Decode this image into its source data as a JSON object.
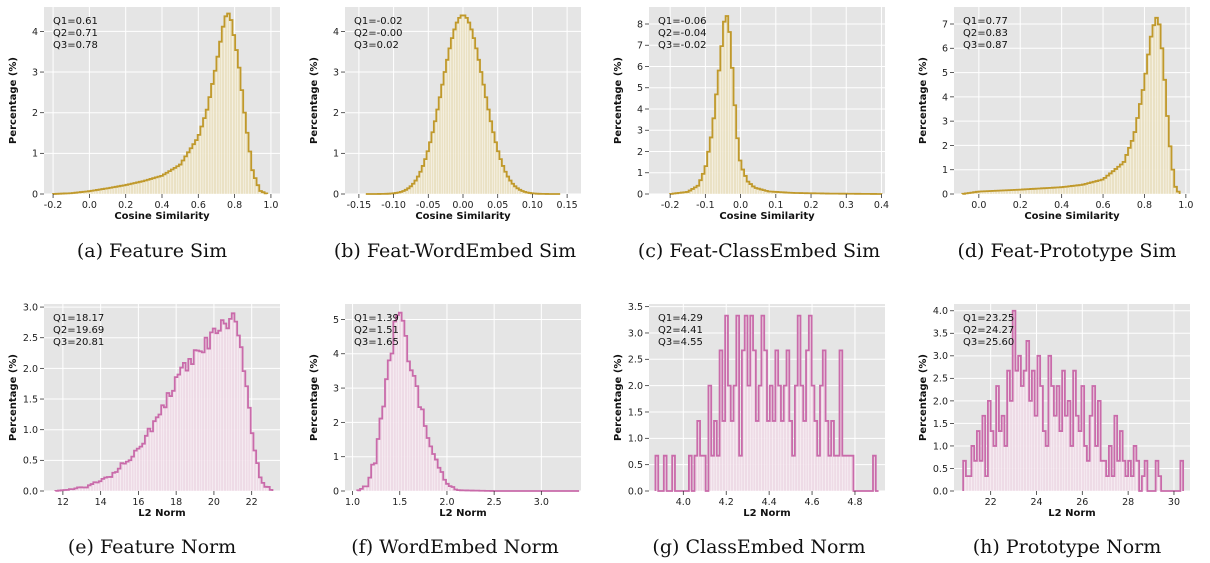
{
  "chart_data": [
    {
      "type": "histogram",
      "caption": "(a) Feature Sim",
      "xlabel": "Cosine Similarity",
      "ylabel": "Percentage (%)",
      "xlim": [
        -0.25,
        1.05
      ],
      "ylim": [
        0,
        4.6
      ],
      "xticks": [
        "-0.2",
        "0.0",
        "0.2",
        "0.4",
        "0.6",
        "0.8",
        "1.0"
      ],
      "yticks": [
        "0",
        "1",
        "2",
        "3",
        "4"
      ],
      "stats": [
        "Q1=0.61",
        "Q2=0.71",
        "Q3=0.78"
      ],
      "color": "#C0992B",
      "fill": "#EAE0C0",
      "range": [
        -0.2,
        0.98
      ],
      "bins": 80,
      "curve": {
        "kind": "knots",
        "points": [
          [
            -0.2,
            0
          ],
          [
            -0.1,
            0.02
          ],
          [
            0.0,
            0.07
          ],
          [
            0.1,
            0.14
          ],
          [
            0.2,
            0.22
          ],
          [
            0.3,
            0.32
          ],
          [
            0.4,
            0.45
          ],
          [
            0.5,
            0.72
          ],
          [
            0.6,
            1.4
          ],
          [
            0.65,
            2.1
          ],
          [
            0.7,
            3.2
          ],
          [
            0.74,
            4.2
          ],
          [
            0.76,
            4.5
          ],
          [
            0.78,
            4.3
          ],
          [
            0.82,
            3.3
          ],
          [
            0.86,
            1.8
          ],
          [
            0.9,
            0.55
          ],
          [
            0.94,
            0.08
          ],
          [
            0.98,
            0
          ]
        ]
      }
    },
    {
      "type": "histogram",
      "caption": "(b) Feat-WordEmbed Sim",
      "xlabel": "Cosine Similarity",
      "ylabel": "Percentage (%)",
      "xlim": [
        -0.17,
        0.17
      ],
      "ylim": [
        0,
        4.6
      ],
      "xticks": [
        "-0.15",
        "-0.10",
        "-0.05",
        "0.00",
        "0.05",
        "0.10",
        "0.15"
      ],
      "yticks": [
        "0",
        "1",
        "2",
        "3",
        "4"
      ],
      "stats": [
        "Q1=-0.02",
        "Q2=-0.00",
        "Q3=0.02"
      ],
      "color": "#C0992B",
      "fill": "#EAE0C0",
      "range": [
        -0.14,
        0.14
      ],
      "bins": 80,
      "curve": {
        "kind": "gauss",
        "mu": 0.0,
        "sigma": 0.03,
        "peak": 4.4
      }
    },
    {
      "type": "histogram",
      "caption": "(c) Feat-ClassEmbed Sim",
      "xlabel": "Cosine Similarity",
      "ylabel": "Percentage (%)",
      "xlim": [
        -0.26,
        0.41
      ],
      "ylim": [
        0,
        8.8
      ],
      "xticks": [
        "-0.2",
        "-0.1",
        "0.0",
        "0.1",
        "0.2",
        "0.3",
        "0.4"
      ],
      "yticks": [
        "0",
        "1",
        "2",
        "3",
        "4",
        "5",
        "6",
        "7",
        "8"
      ],
      "stats": [
        "Q1=-0.06",
        "Q2=-0.04",
        "Q3=-0.02"
      ],
      "color": "#C0992B",
      "fill": "#EAE0C0",
      "range": [
        -0.2,
        0.4
      ],
      "bins": 80,
      "curve": {
        "kind": "knots",
        "points": [
          [
            -0.2,
            0
          ],
          [
            -0.15,
            0.1
          ],
          [
            -0.12,
            0.4
          ],
          [
            -0.1,
            1.2
          ],
          [
            -0.08,
            3.0
          ],
          [
            -0.06,
            6.0
          ],
          [
            -0.045,
            8.3
          ],
          [
            -0.04,
            8.5
          ],
          [
            -0.03,
            7.5
          ],
          [
            -0.02,
            5.0
          ],
          [
            -0.01,
            2.8
          ],
          [
            0.0,
            1.4
          ],
          [
            0.02,
            0.6
          ],
          [
            0.04,
            0.3
          ],
          [
            0.08,
            0.12
          ],
          [
            0.15,
            0.05
          ],
          [
            0.25,
            0.02
          ],
          [
            0.4,
            0.0
          ]
        ]
      }
    },
    {
      "type": "histogram",
      "caption": "(d) Feat-Prototype Sim",
      "xlabel": "Cosine Similarity",
      "ylabel": "Percentage (%)",
      "xlim": [
        -0.12,
        1.02
      ],
      "ylim": [
        0,
        7.7
      ],
      "xticks": [
        "0.0",
        "0.2",
        "0.4",
        "0.6",
        "0.8",
        "1.0"
      ],
      "yticks": [
        "0",
        "1",
        "2",
        "3",
        "4",
        "5",
        "6",
        "7"
      ],
      "stats": [
        "Q1=0.77",
        "Q2=0.83",
        "Q3=0.87"
      ],
      "color": "#C0992B",
      "fill": "#EAE0C0",
      "range": [
        -0.08,
        0.97
      ],
      "bins": 80,
      "curve": {
        "kind": "knots",
        "points": [
          [
            -0.08,
            0
          ],
          [
            0.0,
            0.1
          ],
          [
            0.2,
            0.18
          ],
          [
            0.4,
            0.28
          ],
          [
            0.5,
            0.38
          ],
          [
            0.6,
            0.6
          ],
          [
            0.7,
            1.3
          ],
          [
            0.75,
            2.4
          ],
          [
            0.8,
            4.6
          ],
          [
            0.83,
            6.4
          ],
          [
            0.855,
            7.3
          ],
          [
            0.87,
            7.1
          ],
          [
            0.89,
            5.6
          ],
          [
            0.91,
            3.3
          ],
          [
            0.93,
            1.4
          ],
          [
            0.95,
            0.3
          ],
          [
            0.97,
            0
          ]
        ]
      }
    },
    {
      "type": "histogram",
      "caption": "(e) Feature Norm",
      "xlabel": "L2 Norm",
      "ylabel": "Percentage (%)",
      "xlim": [
        11.0,
        23.5
      ],
      "ylim": [
        0,
        3.05
      ],
      "xticks": [
        "12",
        "14",
        "16",
        "18",
        "20",
        "22"
      ],
      "yticks": [
        "0.0",
        "0.5",
        "1.0",
        "1.5",
        "2.0",
        "2.5",
        "3.0"
      ],
      "stats": [
        "Q1=18.17",
        "Q2=19.69",
        "Q3=20.81"
      ],
      "color": "#C96BAA",
      "fill": "#EED9E6",
      "range": [
        11.6,
        23.1
      ],
      "bins": 80,
      "curve": {
        "kind": "knots",
        "points": [
          [
            11.6,
            0
          ],
          [
            12.5,
            0.03
          ],
          [
            13.5,
            0.1
          ],
          [
            14.5,
            0.25
          ],
          [
            15.5,
            0.55
          ],
          [
            16.5,
            0.9
          ],
          [
            17.5,
            1.5
          ],
          [
            18.5,
            2.0
          ],
          [
            19.5,
            2.35
          ],
          [
            20.5,
            2.7
          ],
          [
            21.0,
            2.8
          ],
          [
            21.5,
            2.25
          ],
          [
            22.0,
            1.0
          ],
          [
            22.5,
            0.15
          ],
          [
            23.1,
            0
          ]
        ]
      },
      "noise": 0.09
    },
    {
      "type": "histogram",
      "caption": "(f) WordEmbed Norm",
      "xlabel": "L2 Norm",
      "ylabel": "Percentage (%)",
      "xlim": [
        0.92,
        3.42
      ],
      "ylim": [
        0,
        5.45
      ],
      "xticks": [
        "1.0",
        "1.5",
        "2.0",
        "2.5",
        "3.0"
      ],
      "yticks": [
        "0",
        "1",
        "2",
        "3",
        "4",
        "5"
      ],
      "stats": [
        "Q1=1.39",
        "Q2=1.51",
        "Q3=1.65"
      ],
      "color": "#C96BAA",
      "fill": "#EED9E6",
      "range": [
        1.05,
        3.4
      ],
      "bins": 80,
      "curve": {
        "kind": "knots",
        "points": [
          [
            1.05,
            0.0
          ],
          [
            1.15,
            0.15
          ],
          [
            1.25,
            1.0
          ],
          [
            1.35,
            3.0
          ],
          [
            1.45,
            4.8
          ],
          [
            1.5,
            5.2
          ],
          [
            1.55,
            4.5
          ],
          [
            1.65,
            3.3
          ],
          [
            1.75,
            2.1
          ],
          [
            1.85,
            1.1
          ],
          [
            1.95,
            0.45
          ],
          [
            2.05,
            0.1
          ],
          [
            2.15,
            0.02
          ],
          [
            2.5,
            0.0
          ],
          [
            3.4,
            0.0
          ]
        ]
      },
      "noise": 0.12
    },
    {
      "type": "histogram",
      "caption": "(g) ClassEmbed Norm",
      "xlabel": "L2 Norm",
      "ylabel": "Percentage (%)",
      "xlim": [
        3.84,
        4.94
      ],
      "ylim": [
        0,
        3.55
      ],
      "xticks": [
        "4.0",
        "4.2",
        "4.4",
        "4.6",
        "4.8"
      ],
      "yticks": [
        "0.0",
        "0.5",
        "1.0",
        "1.5",
        "2.0",
        "2.5",
        "3.0",
        "3.5"
      ],
      "stats": [
        "Q1=4.29",
        "Q2=4.41",
        "Q3=4.55"
      ],
      "color": "#C96BAA",
      "fill": "#EED9E6",
      "range": [
        3.87,
        4.91
      ],
      "bins": 80,
      "values": [
        0.67,
        0,
        0,
        0.67,
        0,
        0,
        0.67,
        0,
        0,
        0,
        0,
        0,
        0.67,
        0,
        0.67,
        1.33,
        0.67,
        0.67,
        0,
        2.0,
        0.67,
        1.33,
        0.67,
        2.67,
        1.33,
        3.33,
        2.0,
        1.33,
        2.0,
        3.33,
        0.67,
        2.67,
        3.33,
        2.0,
        3.33,
        2.67,
        1.33,
        2.0,
        3.33,
        2.67,
        1.33,
        2.0,
        1.33,
        2.67,
        2.0,
        1.33,
        2.0,
        2.67,
        1.33,
        0.67,
        2.0,
        3.33,
        2.0,
        1.33,
        2.67,
        3.33,
        2.0,
        1.33,
        0.67,
        2.0,
        2.67,
        1.33,
        0.67,
        1.33,
        0.67,
        0.67,
        2.67,
        0.67,
        0.67,
        0.67,
        0.67,
        0,
        0,
        0,
        0,
        0,
        0,
        0,
        0.67,
        0
      ]
    },
    {
      "type": "histogram",
      "caption": "(h) Prototype Norm",
      "xlabel": "L2 Norm",
      "ylabel": "Percentage (%)",
      "xlim": [
        20.4,
        30.7
      ],
      "ylim": [
        0,
        4.15
      ],
      "xticks": [
        "22",
        "24",
        "26",
        "28",
        "30"
      ],
      "yticks": [
        "0.0",
        "0.5",
        "1.0",
        "1.5",
        "2.0",
        "2.5",
        "3.0",
        "3.5",
        "4.0"
      ],
      "stats": [
        "Q1=23.25",
        "Q2=24.27",
        "Q3=25.60"
      ],
      "color": "#C96BAA",
      "fill": "#EED9E6",
      "range": [
        20.8,
        30.4
      ],
      "bins": 80,
      "values": [
        0.67,
        0.33,
        0.33,
        1.0,
        0.67,
        1.33,
        0.67,
        1.67,
        0.33,
        2.0,
        1.33,
        1.0,
        2.33,
        1.33,
        1.67,
        1.0,
        2.67,
        2.0,
        4.0,
        2.67,
        3.0,
        2.33,
        2.67,
        3.33,
        2.0,
        2.67,
        1.67,
        3.0,
        2.33,
        1.33,
        1.0,
        3.0,
        2.33,
        1.67,
        2.33,
        1.33,
        2.67,
        1.67,
        2.0,
        1.0,
        2.67,
        1.67,
        1.33,
        2.33,
        1.0,
        0.67,
        1.67,
        2.33,
        1.0,
        2.0,
        0.67,
        0.67,
        0.33,
        1.0,
        0.33,
        1.67,
        0.67,
        1.33,
        0.67,
        0.33,
        0.67,
        0.33,
        1.0,
        0.67,
        0,
        0.33,
        0.67,
        0,
        0,
        0,
        0.67,
        0.33,
        0,
        0,
        0,
        0,
        0,
        0,
        0,
        0.67
      ]
    }
  ]
}
